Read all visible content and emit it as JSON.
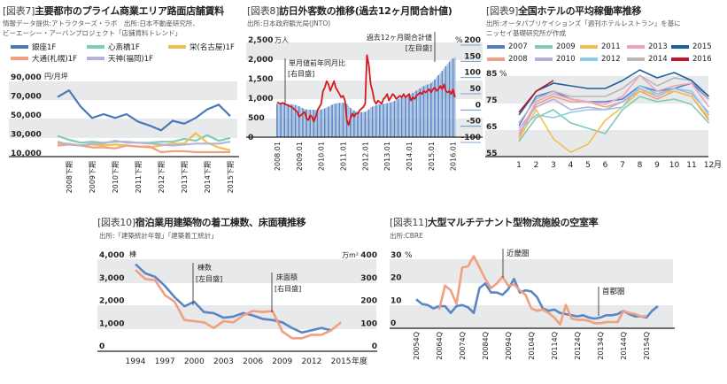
{
  "chart_data": [
    {
      "type": "line",
      "label": "[図表7]",
      "title": "主要都市のプライム商業エリア路面店舗賃料",
      "source": [
        "情報データ提供:アトラクターズ・ラボ　出所:日本不動産研究所、",
        "ビーエーシー・アーバンプロジェクト「店舗賃料トレンド」"
      ],
      "ylabel": "円/月坪",
      "y_ticks": [
        "90,000",
        "70,000",
        "50,000",
        "30,000",
        "10,000"
      ],
      "ylim": [
        10000,
        90000
      ],
      "x_tick_labels": [
        "2008下期",
        "2009下期",
        "2010下期",
        "2011下期",
        "2012下期",
        "2013下期",
        "2014下期",
        "2015下期"
      ],
      "grid": "banded",
      "legend": "top",
      "series": [
        {
          "name": "銀座1F",
          "color": "#4a78b8",
          "values": [
            68000,
            75000,
            58000,
            46000,
            50000,
            46000,
            50000,
            42000,
            38000,
            33000,
            43000,
            40000,
            46000,
            55000,
            60000,
            48000
          ]
        },
        {
          "name": "心斎橋1F",
          "color": "#7fcbb5",
          "values": [
            27000,
            23000,
            20000,
            21000,
            20000,
            21000,
            21000,
            20000,
            20000,
            21000,
            21000,
            24000,
            22000,
            28000,
            22000,
            25000
          ]
        },
        {
          "name": "栄(名古屋)1F",
          "color": "#f2c04a",
          "values": [
            19000,
            19000,
            17000,
            18000,
            17000,
            18000,
            17000,
            16000,
            15000,
            17000,
            19000,
            19000,
            30000,
            20000,
            15000,
            12000
          ]
        },
        {
          "name": "大通(札幌)1F",
          "color": "#f0a080",
          "values": [
            17000,
            18000,
            17000,
            15000,
            15000,
            14000,
            17000,
            16000,
            16000,
            10000,
            11000,
            11000,
            10000,
            10000,
            10000,
            10000
          ]
        },
        {
          "name": "天神(福岡)1F",
          "color": "#b9b2d8",
          "values": [
            21000,
            18000,
            17000,
            19000,
            19000,
            22000,
            20000,
            20000,
            19000,
            18000,
            17000,
            18000,
            19000,
            19000,
            19000,
            21000
          ]
        }
      ]
    },
    {
      "type": "bar+line",
      "label": "[図表8]",
      "title": "訪日外客数の推移(過去12ヶ月間合計値)",
      "source": [
        "出所:日本政府観光局(JNTO)"
      ],
      "ylabel_left": "万人",
      "ylabel_right": "%",
      "y_ticks_left": [
        "2,500",
        "2,000",
        "1,500",
        "1,000",
        "500",
        "0"
      ],
      "ylim_left": [
        0,
        2500
      ],
      "y_ticks_right": [
        "200",
        "150",
        "100",
        "50",
        "0",
        "-50",
        "-100"
      ],
      "ylim_right": [
        -100,
        200
      ],
      "x_tick_labels": [
        "2008.01",
        "2009.01",
        "2010.01",
        "2011.01",
        "2012.01",
        "2013.01",
        "2014.01",
        "2015.01",
        "2016.01"
      ],
      "annotations": [
        [
          "過去12ヶ月間合計値",
          "[左目盛]"
        ],
        [
          "単月値前年同月比",
          "[右目盛]"
        ]
      ],
      "bar_color": "#5b86c6",
      "line_color": "#d7191c",
      "bars": [
        835,
        835,
        840,
        835,
        830,
        830,
        830,
        825,
        820,
        810,
        800,
        790,
        770,
        740,
        720,
        700,
        690,
        680,
        680,
        680,
        680,
        680,
        680,
        680,
        690,
        700,
        720,
        740,
        760,
        790,
        810,
        830,
        840,
        850,
        855,
        860,
        860,
        860,
        830,
        780,
        730,
        690,
        660,
        640,
        630,
        620,
        620,
        620,
        630,
        650,
        690,
        740,
        760,
        780,
        800,
        810,
        820,
        830,
        830,
        840,
        850,
        860,
        870,
        890,
        910,
        930,
        950,
        980,
        990,
        1010,
        1030,
        1040,
        1060,
        1080,
        1110,
        1140,
        1170,
        1200,
        1230,
        1270,
        1290,
        1310,
        1330,
        1340,
        1370,
        1410,
        1460,
        1520,
        1570,
        1620,
        1680,
        1740,
        1800,
        1860,
        1920,
        1970,
        2000,
        2030
      ],
      "line": [
        5,
        2,
        0,
        3,
        0,
        -3,
        -5,
        -8,
        -10,
        -15,
        -20,
        -25,
        -40,
        -35,
        -30,
        -25,
        -45,
        -50,
        -35,
        -40,
        -55,
        -40,
        -20,
        -10,
        0,
        40,
        50,
        70,
        60,
        40,
        55,
        70,
        50,
        40,
        30,
        20,
        25,
        10,
        -50,
        -65,
        -45,
        -30,
        -40,
        -30,
        -30,
        -20,
        -15,
        -10,
        0,
        150,
        120,
        60,
        40,
        10,
        0,
        10,
        5,
        0,
        15,
        20,
        30,
        10,
        20,
        30,
        25,
        15,
        20,
        25,
        20,
        30,
        20,
        25,
        30,
        10,
        20,
        15,
        25,
        30,
        35,
        30,
        40,
        35,
        40,
        45,
        35,
        45,
        50,
        40,
        45,
        55,
        45,
        60,
        40,
        35,
        40,
        30,
        45,
        20
      ]
    },
    {
      "type": "line",
      "label": "[図表9]",
      "title": "全国ホテルの平均稼働率推移",
      "source": [
        "出所:オータパブリケイションズ「週刊ホテルレストラン」を基に",
        "ニッセイ基礎研究所が作成"
      ],
      "ylabel": "%",
      "y_ticks": [
        "85",
        "75",
        "65",
        "55"
      ],
      "ylim": [
        55,
        85
      ],
      "x_tick_labels": [
        "1",
        "2",
        "3",
        "4",
        "5",
        "6",
        "7",
        "8",
        "9",
        "10",
        "11",
        "12"
      ],
      "xlabel": "月",
      "legend": "top",
      "series": [
        {
          "name": "2007",
          "color": "#4f7fc0",
          "values": [
            65,
            76,
            78,
            75,
            74,
            74,
            75,
            80,
            78,
            79,
            81,
            75
          ]
        },
        {
          "name": "2008",
          "color": "#f0a080",
          "values": [
            61,
            73,
            76,
            74,
            74,
            72,
            74,
            78,
            75,
            78,
            76,
            67
          ]
        },
        {
          "name": "2009",
          "color": "#7fcbb5",
          "values": [
            59,
            68,
            71,
            66,
            64,
            62,
            71,
            76,
            74,
            75,
            73,
            66
          ]
        },
        {
          "name": "2010",
          "color": "#b5aed6",
          "values": [
            64,
            72,
            75,
            71,
            72,
            71,
            74,
            79,
            76,
            79,
            77,
            70
          ]
        },
        {
          "name": "2011",
          "color": "#f2c04a",
          "values": [
            60,
            71,
            60,
            55,
            58,
            67,
            72,
            78,
            77,
            78,
            76,
            68
          ]
        },
        {
          "name": "2012",
          "color": "#8cc9e8",
          "values": [
            63,
            69,
            68,
            70,
            71,
            71,
            72,
            80,
            77,
            79,
            78,
            69
          ]
        },
        {
          "name": "2013",
          "color": "#eea3c6",
          "values": [
            62,
            74,
            77,
            75,
            74,
            73,
            76,
            84,
            78,
            80,
            81,
            72
          ]
        },
        {
          "name": "2014",
          "color": "#b8b8b8",
          "values": [
            66,
            75,
            78,
            76,
            76,
            76,
            79,
            84,
            80,
            83,
            82,
            75
          ]
        },
        {
          "name": "2015",
          "color": "#1f5fa0",
          "values": [
            69,
            78,
            81,
            80,
            79,
            79,
            82,
            86,
            83,
            85,
            82,
            76
          ]
        },
        {
          "name": "2016",
          "color": "#c0152b",
          "values": [
            70,
            78,
            82
          ]
        }
      ]
    },
    {
      "type": "line",
      "label": "[図表10]",
      "title": "宿泊業用建築物の着工棟数、床面積推移",
      "source": [
        "出所:「建築統計年報」「建築着工統計」"
      ],
      "ylabel_left": "棟",
      "ylabel_right": "万m²",
      "y_ticks_left": [
        "4,000",
        "3,000",
        "2,000",
        "1,000",
        "0"
      ],
      "ylim_left": [
        0,
        4000
      ],
      "y_ticks_right": [
        "400",
        "300",
        "200",
        "100",
        "0"
      ],
      "ylim_right": [
        0,
        400
      ],
      "x": [
        1994,
        1995,
        1996,
        1997,
        1998,
        1999,
        2000,
        2001,
        2002,
        2003,
        2004,
        2005,
        2006,
        2007,
        2008,
        2009,
        2010,
        2011,
        2012,
        2013,
        2014,
        2015
      ],
      "x_tick_labels": [
        "1994",
        "1997",
        "2000",
        "2003",
        "2006",
        "2009",
        "2012",
        "2015"
      ],
      "xlabel": "年度",
      "annotations": [
        [
          "棟数",
          "[左目盛]"
        ],
        [
          "床面積",
          "[右目盛]"
        ]
      ],
      "series": [
        {
          "name": "棟数",
          "axis": "left",
          "color": "#5b86c6",
          "values": [
            3550,
            3150,
            3000,
            2600,
            2100,
            1700,
            1900,
            1450,
            1400,
            1200,
            1250,
            1400,
            1300,
            1150,
            1100,
            1000,
            750,
            550,
            650,
            750,
            650,
            null
          ]
        },
        {
          "name": "床面積",
          "axis": "right",
          "color": "#f0a080",
          "values": [
            330,
            290,
            285,
            220,
            190,
            110,
            105,
            100,
            75,
            105,
            100,
            130,
            150,
            145,
            150,
            60,
            30,
            30,
            45,
            45,
            65,
            100
          ]
        }
      ]
    },
    {
      "type": "line",
      "label": "[図表11]",
      "title": "大型マルチテナント型物流施設の空室率",
      "source": [
        "出所:CBRE"
      ],
      "ylabel": "%",
      "y_ticks": [
        "30",
        "20",
        "10",
        "0"
      ],
      "ylim": [
        0,
        30
      ],
      "x_tick_labels": [
        "20054Q",
        "20064Q",
        "20074Q",
        "20084Q",
        "20094Q",
        "20104Q",
        "20114Q",
        "20124Q",
        "20134Q",
        "20144Q",
        "20154Q"
      ],
      "series": [
        {
          "name": "首都圏",
          "color": "#5b86c6",
          "values": [
            10,
            8,
            7.5,
            6,
            7,
            7,
            4,
            7,
            7.5,
            6.5,
            4,
            15,
            17,
            13,
            13,
            12,
            14.5,
            19,
            13,
            14,
            13.5,
            11,
            6,
            5,
            5.5,
            4,
            3.5,
            3,
            2.5,
            3,
            2,
            1.5,
            2,
            3,
            3,
            3.5,
            5,
            3.5,
            2.5,
            2.5,
            2,
            5,
            7
          ]
        },
        {
          "name": "近畿圏",
          "color": "#f0a080",
          "values": [
            null,
            null,
            null,
            null,
            5.5,
            16,
            14,
            8,
            24,
            24.5,
            29,
            24,
            19,
            15,
            17,
            20,
            16,
            16.5,
            14,
            12,
            6,
            5,
            5.5,
            4,
            2,
            -1,
            7.5,
            1.5,
            1,
            1,
            0.5,
            -0.5,
            -0.5,
            0,
            0,
            0,
            5,
            4,
            3.5,
            2.5,
            2.5,
            null,
            null
          ]
        }
      ]
    }
  ]
}
